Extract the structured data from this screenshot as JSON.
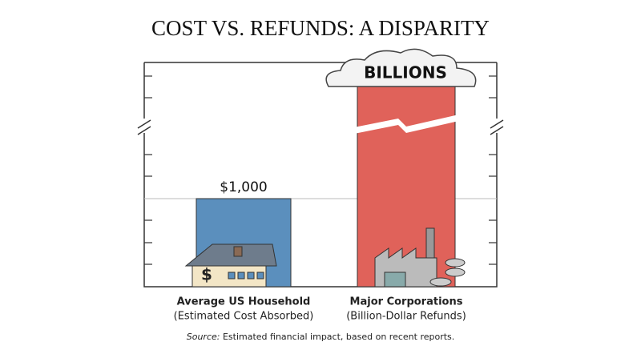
{
  "chart_data": {
    "type": "bar",
    "title": "COST VS. REFUNDS: A DISPARITY",
    "categories": [
      "Average US Household",
      "Major Corporations"
    ],
    "category_notes": [
      "(Estimated Cost Absorbed)",
      "(Billion-Dollar Refunds)"
    ],
    "values": [
      1000,
      null
    ],
    "value_labels": [
      "$1,000",
      "BILLIONS"
    ],
    "colors": [
      "#5b8fbd",
      "#e0625a"
    ],
    "ylim": [
      0,
      1500
    ],
    "source_label": "Source:",
    "source": "Estimated financial impact, based on recent reports."
  }
}
